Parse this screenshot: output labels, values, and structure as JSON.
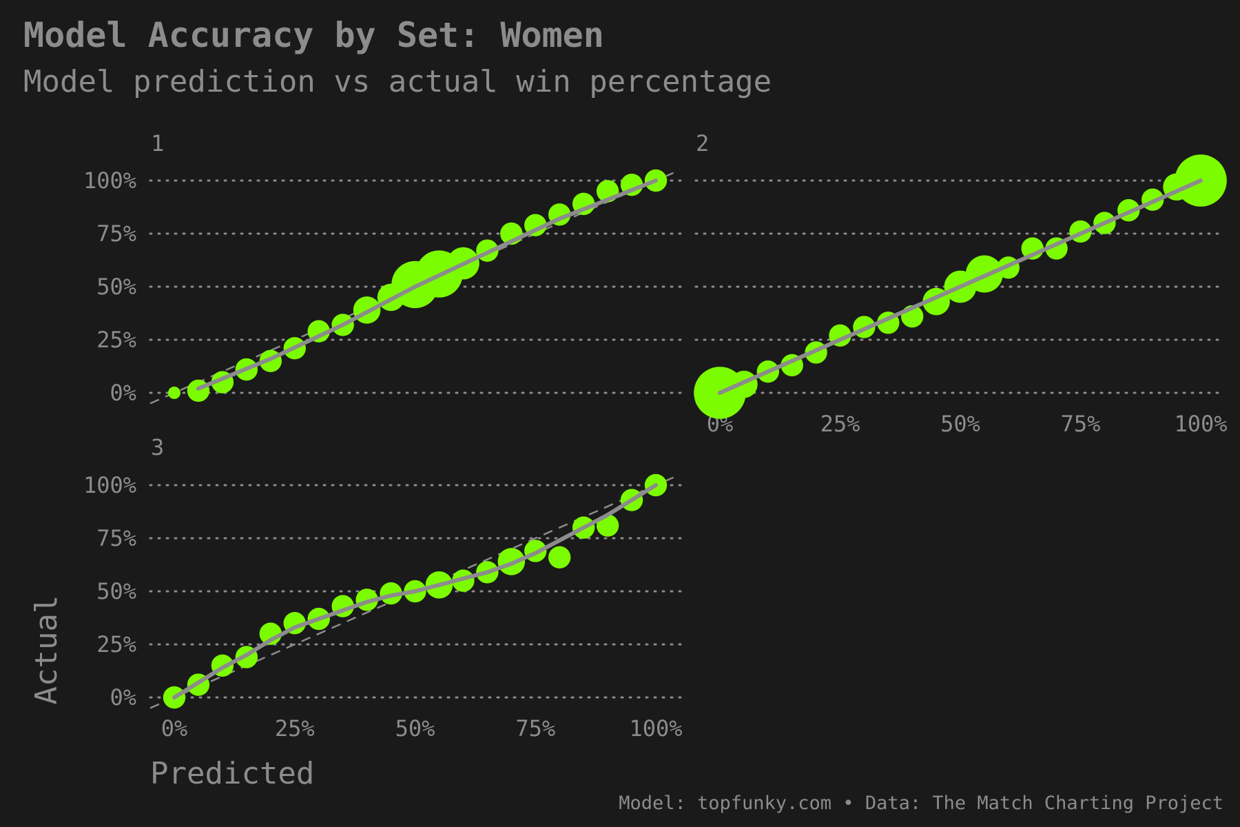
{
  "title": "Model Accuracy by Set: Women",
  "subtitle": "Model prediction vs actual win percentage",
  "caption": "Model: topfunky.com • Data: The Match Charting Project",
  "colors": {
    "background": "#1a1a1a",
    "text": "#8c8c8c",
    "point": "#7cfc00",
    "line": "#8c8c8c"
  },
  "chart_data": {
    "type": "scatter",
    "xlabel": "Predicted",
    "ylabel": "Actual",
    "xlim": [
      0,
      1
    ],
    "ylim": [
      0,
      1
    ],
    "x_ticks": [
      "0%",
      "25%",
      "50%",
      "75%",
      "100%"
    ],
    "y_ticks": [
      "0%",
      "25%",
      "50%",
      "75%",
      "100%"
    ],
    "grid": "horizontal dotted",
    "reference_line": "y = x (dashed)",
    "panels": [
      {
        "facet": "1",
        "points": [
          {
            "x": 0.0,
            "y": 0.0,
            "size": 1
          },
          {
            "x": 0.05,
            "y": 0.01,
            "size": 3
          },
          {
            "x": 0.1,
            "y": 0.05,
            "size": 3
          },
          {
            "x": 0.15,
            "y": 0.11,
            "size": 3
          },
          {
            "x": 0.2,
            "y": 0.15,
            "size": 3
          },
          {
            "x": 0.25,
            "y": 0.21,
            "size": 3
          },
          {
            "x": 0.3,
            "y": 0.29,
            "size": 3
          },
          {
            "x": 0.35,
            "y": 0.32,
            "size": 3
          },
          {
            "x": 0.4,
            "y": 0.39,
            "size": 4
          },
          {
            "x": 0.45,
            "y": 0.45,
            "size": 4
          },
          {
            "x": 0.5,
            "y": 0.51,
            "size": 8
          },
          {
            "x": 0.55,
            "y": 0.56,
            "size": 8
          },
          {
            "x": 0.6,
            "y": 0.61,
            "size": 5
          },
          {
            "x": 0.65,
            "y": 0.67,
            "size": 3
          },
          {
            "x": 0.7,
            "y": 0.75,
            "size": 3
          },
          {
            "x": 0.75,
            "y": 0.79,
            "size": 3
          },
          {
            "x": 0.8,
            "y": 0.84,
            "size": 3
          },
          {
            "x": 0.85,
            "y": 0.89,
            "size": 3
          },
          {
            "x": 0.9,
            "y": 0.95,
            "size": 3
          },
          {
            "x": 0.95,
            "y": 0.98,
            "size": 3
          },
          {
            "x": 1.0,
            "y": 1.0,
            "size": 3
          }
        ],
        "fit": [
          [
            0.05,
            0.02
          ],
          [
            0.2,
            0.16
          ],
          [
            0.35,
            0.32
          ],
          [
            0.5,
            0.5
          ],
          [
            0.65,
            0.66
          ],
          [
            0.8,
            0.82
          ],
          [
            1.0,
            1.0
          ]
        ]
      },
      {
        "facet": "2",
        "points": [
          {
            "x": 0.0,
            "y": 0.0,
            "size": 9
          },
          {
            "x": 0.05,
            "y": 0.04,
            "size": 4
          },
          {
            "x": 0.1,
            "y": 0.1,
            "size": 3
          },
          {
            "x": 0.15,
            "y": 0.13,
            "size": 3
          },
          {
            "x": 0.2,
            "y": 0.19,
            "size": 3
          },
          {
            "x": 0.25,
            "y": 0.27,
            "size": 3
          },
          {
            "x": 0.3,
            "y": 0.31,
            "size": 3
          },
          {
            "x": 0.35,
            "y": 0.33,
            "size": 3
          },
          {
            "x": 0.4,
            "y": 0.36,
            "size": 3
          },
          {
            "x": 0.45,
            "y": 0.43,
            "size": 4
          },
          {
            "x": 0.5,
            "y": 0.5,
            "size": 5
          },
          {
            "x": 0.55,
            "y": 0.56,
            "size": 6
          },
          {
            "x": 0.6,
            "y": 0.59,
            "size": 3
          },
          {
            "x": 0.65,
            "y": 0.68,
            "size": 3
          },
          {
            "x": 0.7,
            "y": 0.68,
            "size": 3
          },
          {
            "x": 0.75,
            "y": 0.76,
            "size": 3
          },
          {
            "x": 0.8,
            "y": 0.8,
            "size": 3
          },
          {
            "x": 0.85,
            "y": 0.86,
            "size": 3
          },
          {
            "x": 0.9,
            "y": 0.91,
            "size": 3
          },
          {
            "x": 0.95,
            "y": 0.97,
            "size": 4
          },
          {
            "x": 1.0,
            "y": 1.0,
            "size": 9
          }
        ],
        "fit": [
          [
            0.0,
            0.0
          ],
          [
            0.25,
            0.25
          ],
          [
            0.5,
            0.5
          ],
          [
            0.75,
            0.75
          ],
          [
            1.0,
            1.0
          ]
        ]
      },
      {
        "facet": "3",
        "points": [
          {
            "x": 0.0,
            "y": 0.0,
            "size": 3
          },
          {
            "x": 0.05,
            "y": 0.06,
            "size": 3
          },
          {
            "x": 0.1,
            "y": 0.15,
            "size": 3
          },
          {
            "x": 0.15,
            "y": 0.19,
            "size": 3
          },
          {
            "x": 0.2,
            "y": 0.3,
            "size": 3
          },
          {
            "x": 0.25,
            "y": 0.35,
            "size": 3
          },
          {
            "x": 0.3,
            "y": 0.37,
            "size": 3
          },
          {
            "x": 0.35,
            "y": 0.43,
            "size": 3
          },
          {
            "x": 0.4,
            "y": 0.46,
            "size": 3
          },
          {
            "x": 0.45,
            "y": 0.49,
            "size": 3
          },
          {
            "x": 0.5,
            "y": 0.5,
            "size": 3
          },
          {
            "x": 0.55,
            "y": 0.53,
            "size": 4
          },
          {
            "x": 0.6,
            "y": 0.55,
            "size": 3
          },
          {
            "x": 0.65,
            "y": 0.59,
            "size": 3
          },
          {
            "x": 0.7,
            "y": 0.64,
            "size": 4
          },
          {
            "x": 0.75,
            "y": 0.69,
            "size": 3
          },
          {
            "x": 0.8,
            "y": 0.66,
            "size": 3
          },
          {
            "x": 0.85,
            "y": 0.8,
            "size": 3
          },
          {
            "x": 0.9,
            "y": 0.81,
            "size": 3
          },
          {
            "x": 0.95,
            "y": 0.93,
            "size": 3
          },
          {
            "x": 1.0,
            "y": 1.0,
            "size": 3
          }
        ],
        "fit": [
          [
            0.0,
            0.0
          ],
          [
            0.05,
            0.07
          ],
          [
            0.1,
            0.14
          ],
          [
            0.15,
            0.2
          ],
          [
            0.2,
            0.27
          ],
          [
            0.25,
            0.33
          ],
          [
            0.3,
            0.37
          ],
          [
            0.35,
            0.41
          ],
          [
            0.4,
            0.45
          ],
          [
            0.45,
            0.48
          ],
          [
            0.5,
            0.5
          ],
          [
            0.55,
            0.53
          ],
          [
            0.6,
            0.56
          ],
          [
            0.65,
            0.59
          ],
          [
            0.7,
            0.63
          ],
          [
            0.75,
            0.68
          ],
          [
            0.8,
            0.74
          ],
          [
            0.85,
            0.8
          ],
          [
            0.9,
            0.86
          ],
          [
            0.95,
            0.93
          ],
          [
            1.0,
            1.0
          ]
        ]
      }
    ]
  }
}
